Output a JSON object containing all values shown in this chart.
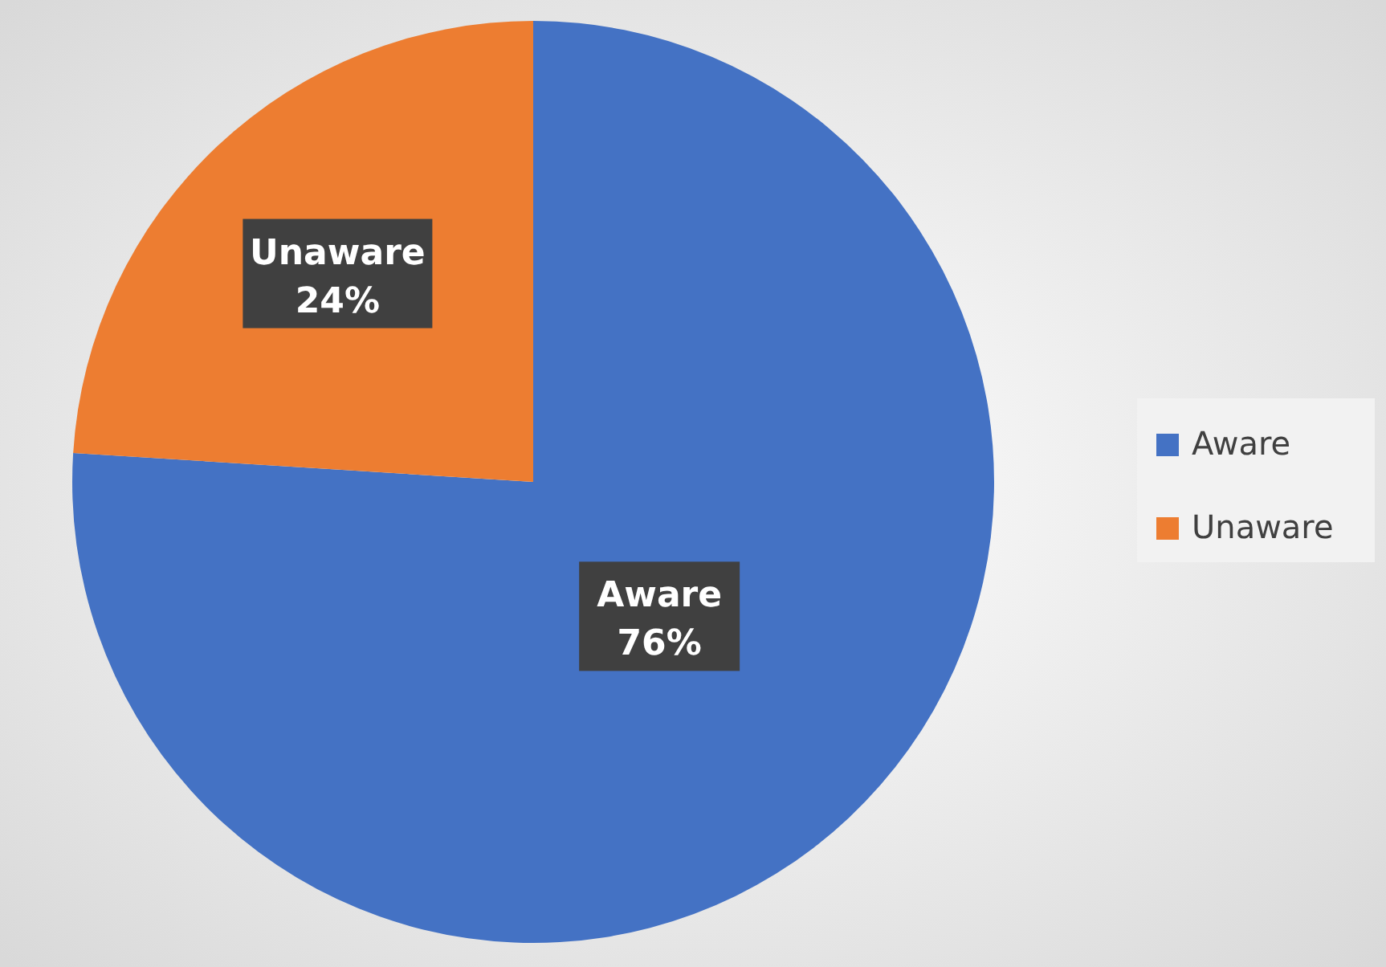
{
  "chart_data": {
    "type": "pie",
    "categories": [
      "Aware",
      "Unaware"
    ],
    "values": [
      76,
      24
    ],
    "colors": [
      "#4472c4",
      "#ed7d31"
    ],
    "value_labels": [
      "76%",
      "24%"
    ],
    "legend": "right"
  }
}
